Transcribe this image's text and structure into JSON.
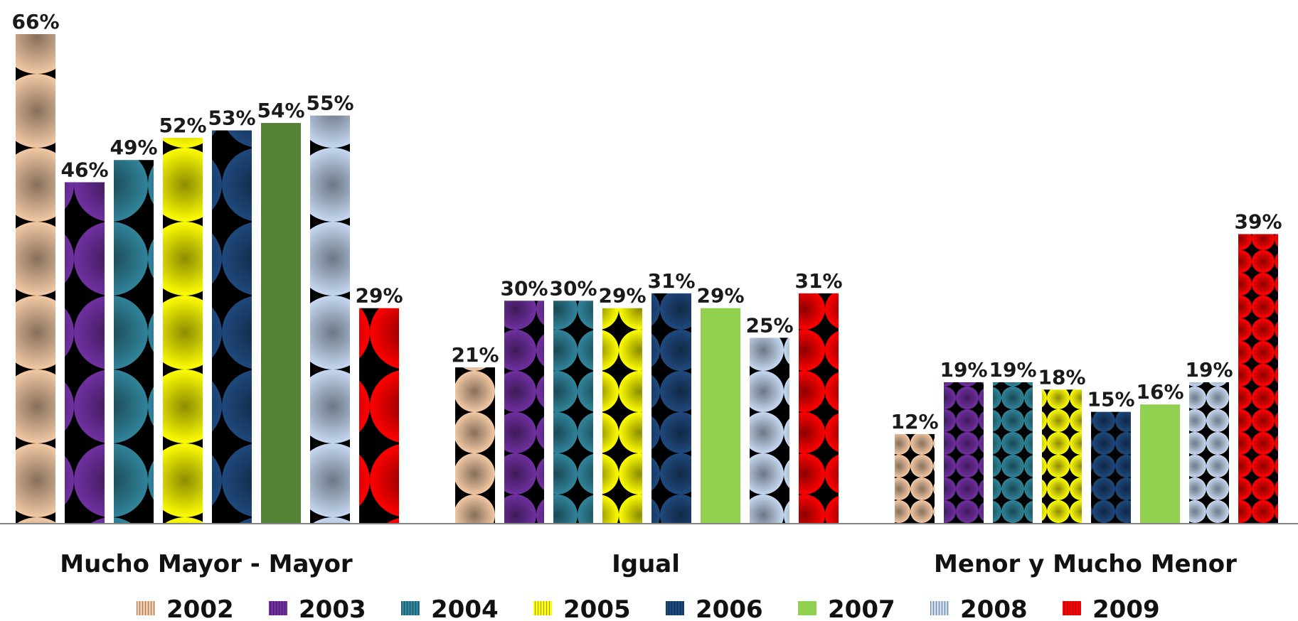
{
  "chart_data": {
    "type": "bar",
    "categories": [
      "Mucho Mayor - Mayor",
      "Igual",
      "Menor y Mucho Menor"
    ],
    "series": [
      {
        "name": "2002",
        "values": [
          66,
          21,
          12
        ],
        "labels": [
          "66%",
          "21%",
          "12%"
        ],
        "color": "#f3c9a5"
      },
      {
        "name": "2003",
        "values": [
          46,
          30,
          19
        ],
        "labels": [
          "46%",
          "30%",
          "19%"
        ],
        "color": "#7030a0"
      },
      {
        "name": "2004",
        "values": [
          49,
          30,
          19
        ],
        "labels": [
          "49%",
          "30%",
          "19%"
        ],
        "color": "#31849b"
      },
      {
        "name": "2005",
        "values": [
          52,
          29,
          18
        ],
        "labels": [
          "52%",
          "29%",
          "18%"
        ],
        "color": "#ffff00"
      },
      {
        "name": "2006",
        "values": [
          53,
          31,
          15
        ],
        "labels": [
          "53%",
          "31%",
          "15%"
        ],
        "color": "#1f497d"
      },
      {
        "name": "2007",
        "values": [
          54,
          29,
          16
        ],
        "labels": [
          "54%",
          "29%",
          "16%"
        ],
        "color": "#92d050"
      },
      {
        "name": "2008",
        "values": [
          55,
          25,
          19
        ],
        "labels": [
          "55%",
          "25%",
          "19%"
        ],
        "color": "#c6d9f1"
      },
      {
        "name": "2009",
        "values": [
          29,
          31,
          39
        ],
        "labels": [
          "29%",
          "31%",
          "39%"
        ],
        "color": "#ff0000"
      }
    ],
    "overrides": {
      "2007": {
        "0": "#548235"
      }
    },
    "ylim": [
      0,
      66
    ],
    "grid": false,
    "legend": "bottom"
  }
}
